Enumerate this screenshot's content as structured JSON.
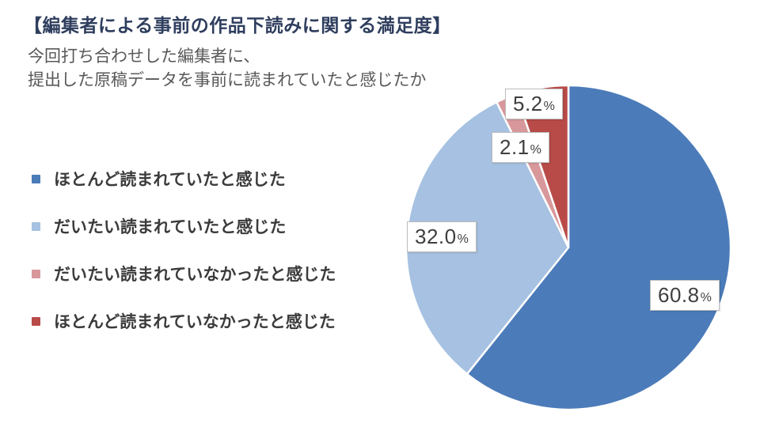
{
  "header": {
    "title": "【編集者による事前の作品下読みに関する満足度】",
    "subtitle_lines": [
      "今回打ち合わせした編集者に、",
      "提出した原稿データを事前に読まれていたと感じたか"
    ]
  },
  "colors": {
    "title_text": "#2F3E5E",
    "subtitle_text": "#595959",
    "legend_text": "#3B3B3B",
    "data_label_text": "#3F3F3F",
    "data_label_border": "#BDBDBD",
    "slice_separator": "#FFFFFF",
    "series": [
      "#4B7BB9",
      "#A6C1E1",
      "#D8989B",
      "#B84B48"
    ]
  },
  "legend": {
    "items": [
      {
        "label": "ほとんど読まれていたと感じた",
        "color": "#4B7BB9"
      },
      {
        "label": "だいたい読まれていたと感じた",
        "color": "#A6C1E1"
      },
      {
        "label": "だいたい読まれていなかったと感じた",
        "color": "#D8989B"
      },
      {
        "label": "ほとんど読まれていなかったと感じた",
        "color": "#B84B48"
      }
    ]
  },
  "chart_data": {
    "type": "pie",
    "title": "編集者による事前の作品下読みに関する満足度",
    "question": "今回打ち合わせした編集者に、提出した原稿データを事前に読まれていたと感じたか",
    "categories": [
      "ほとんど読まれていたと感じた",
      "だいたい読まれていたと感じた",
      "だいたい読まれていなかったと感じた",
      "ほとんど読まれていなかったと感じた"
    ],
    "values": [
      60.8,
      32.0,
      2.1,
      5.2
    ],
    "unit": "%",
    "colors": [
      "#4B7BB9",
      "#A6C1E1",
      "#D8989B",
      "#B84B48"
    ],
    "start_angle_deg": 0,
    "direction": "clockwise",
    "legend_position": "left",
    "data_labels": [
      {
        "num": "60.8",
        "pct": "%"
      },
      {
        "num": "32.0",
        "pct": "%"
      },
      {
        "num": "2.1",
        "pct": "%"
      },
      {
        "num": "5.2",
        "pct": "%"
      }
    ]
  }
}
